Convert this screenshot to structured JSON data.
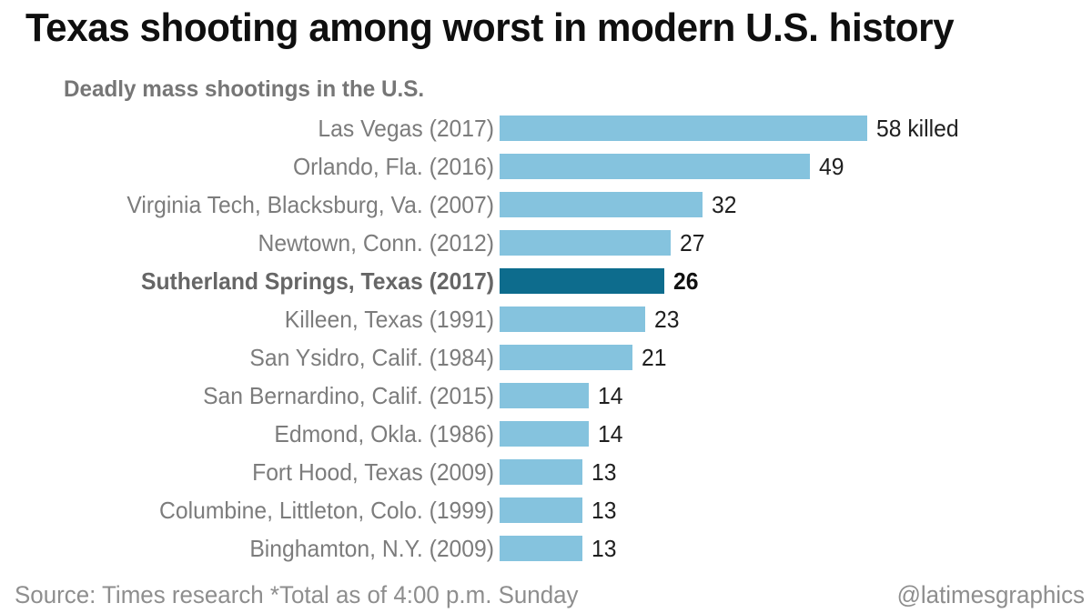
{
  "header": {
    "title": "Texas shooting among worst in modern U.S. history"
  },
  "footer": {
    "source": "Source: Times research *Total as of 4:00 p.m. Sunday",
    "credit": "@latimesgraphics"
  },
  "colors": {
    "bar": "#85C3DE",
    "highlight_bar": "#0D6C8D",
    "label_gray": "#7c7c7c",
    "title_black": "#0f0f0f"
  },
  "chart_data": {
    "type": "bar",
    "orientation": "horizontal",
    "title": "Deadly mass shootings in the U.S.",
    "categories": [
      "Las Vegas (2017)",
      "Orlando, Fla. (2016)",
      "Virginia Tech, Blacksburg, Va. (2007)",
      "Newtown, Conn. (2012)",
      "Sutherland Springs, Texas (2017)",
      "Killeen, Texas (1991)",
      "San Ysidro, Calif. (1984)",
      "San Bernardino, Calif. (2015)",
      "Edmond, Okla. (1986)",
      "Fort Hood, Texas (2009)",
      "Columbine, Littleton, Colo. (1999)",
      "Binghamton, N.Y. (2009)"
    ],
    "values": [
      58,
      49,
      32,
      27,
      26,
      23,
      21,
      14,
      14,
      13,
      13,
      13
    ],
    "value_labels": [
      "58 killed",
      "49",
      "32",
      "27",
      "26",
      "23",
      "21",
      "14",
      "14",
      "13",
      "13",
      "13"
    ],
    "highlight_index": 4,
    "highlight_label": "Sutherland Springs, Texas (2017)",
    "xlabel": "",
    "ylabel": "",
    "xlim": [
      0,
      58
    ],
    "grid": false,
    "legend": false
  }
}
